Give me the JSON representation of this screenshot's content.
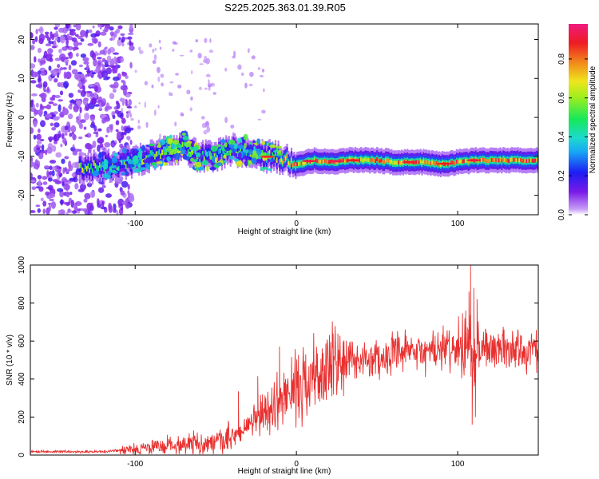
{
  "figure": {
    "title": "S225.2025.363.01.39.R05"
  },
  "chart_data": [
    {
      "type": "heatmap",
      "xlabel": "Height of straight line (km)",
      "ylabel": "Frequency (Hz)",
      "xlim": [
        -165,
        150
      ],
      "ylim": [
        -25,
        24
      ],
      "xticks": [
        -100,
        0,
        100
      ],
      "yticks": [
        -20,
        -10,
        0,
        10,
        20
      ],
      "colorbar": {
        "label": "Normalized spectral amplitude",
        "range": [
          0.0,
          0.98
        ],
        "ticks": [
          0.0,
          0.2,
          0.4,
          0.6,
          0.8
        ],
        "tick_labels": [
          "0.0",
          "0.2",
          "0.4",
          "0.6",
          "0.8"
        ],
        "colormap": "rainbow (violet-blue-cyan-green-yellow-orange-red-magenta)"
      },
      "ridge": {
        "description": "Dominant frequency track in Hz vs height (km)",
        "x": [
          -130,
          -120,
          -110,
          -100,
          -90,
          -80,
          -70,
          -60,
          -50,
          -40,
          -30,
          -20,
          -10,
          0,
          10,
          20,
          30,
          40,
          50,
          60,
          70,
          80,
          90,
          100,
          110,
          120,
          130,
          140,
          150
        ],
        "y": [
          -13,
          -12.5,
          -12,
          -11,
          -10,
          -8.5,
          -7.5,
          -10.5,
          -9.5,
          -8.5,
          -8.5,
          -10,
          -10.5,
          -12,
          -11,
          -11.5,
          -11,
          -11,
          -11,
          -11.5,
          -11.5,
          -11.5,
          -12,
          -11.5,
          -11,
          -11,
          -11,
          -11,
          -11
        ]
      },
      "noise_region": {
        "x_range": [
          -165,
          -110
        ],
        "y_range": [
          -25,
          24
        ]
      }
    },
    {
      "type": "line",
      "xlabel": "Height of straight line (km)",
      "ylabel": "SNR (10 * v/v)",
      "xlim": [
        -165,
        150
      ],
      "ylim": [
        0,
        1000
      ],
      "xticks": [
        -100,
        0,
        100
      ],
      "yticks": [
        0,
        200,
        400,
        600,
        800,
        1000
      ],
      "series": [
        {
          "name": "SNR",
          "color": "#e8302f",
          "envelope_x": [
            -165,
            -140,
            -120,
            -100,
            -90,
            -80,
            -70,
            -60,
            -50,
            -40,
            -30,
            -20,
            -10,
            0,
            10,
            20,
            30,
            40,
            50,
            60,
            70,
            80,
            90,
            100,
            105,
            110,
            115,
            120,
            130,
            140,
            150
          ],
          "envelope_y": [
            18,
            18,
            18,
            30,
            40,
            50,
            60,
            60,
            60,
            90,
            150,
            220,
            290,
            360,
            410,
            450,
            490,
            500,
            510,
            525,
            535,
            540,
            555,
            560,
            565,
            570,
            565,
            560,
            560,
            550,
            550
          ],
          "spikes": [
            {
              "x": -10.5,
              "y": 570
            },
            {
              "x": -24,
              "y": 415
            },
            {
              "x": -36,
              "y": 335
            },
            {
              "x": 105,
              "y": 760
            },
            {
              "x": 107,
              "y": 860
            },
            {
              "x": 108,
              "y": 1000
            },
            {
              "x": 109,
              "y": 160
            },
            {
              "x": 110,
              "y": 880
            },
            {
              "x": 111,
              "y": 200
            },
            {
              "x": 112,
              "y": 820
            }
          ]
        }
      ]
    }
  ]
}
